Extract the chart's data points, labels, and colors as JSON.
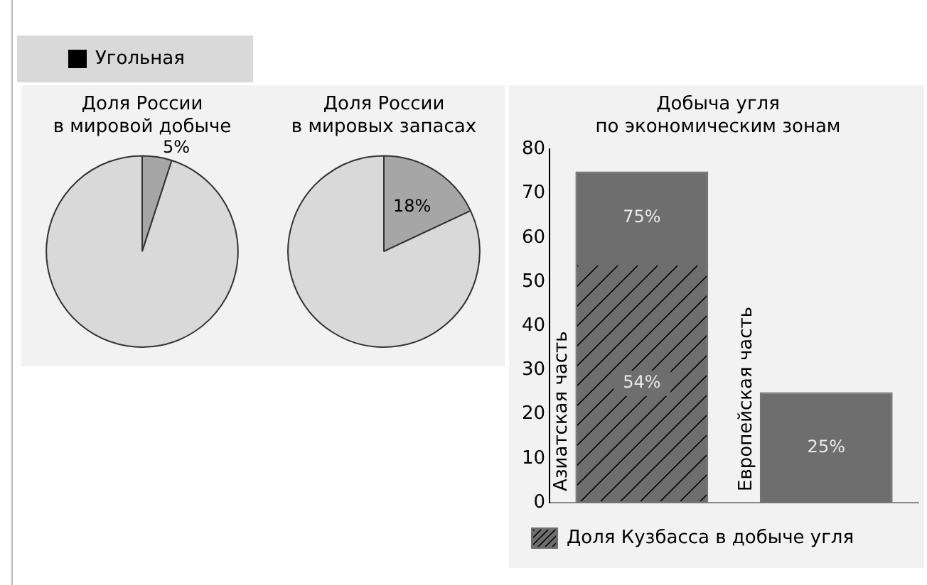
{
  "chart_data": [
    {
      "type": "other",
      "annotations": [
        "Угольная"
      ]
    },
    {
      "type": "pie",
      "title": "Доля России\nв мировой добыче",
      "categories": [
        null,
        null
      ],
      "values": [
        5,
        95
      ],
      "colors": [
        "#a6a6a6",
        "#d9d9d9"
      ],
      "value_labels": [
        "5%",
        null
      ]
    },
    {
      "type": "pie",
      "title": "Доля России\nв мировых запасах",
      "categories": [
        null,
        null
      ],
      "values": [
        18,
        82
      ],
      "colors": [
        "#a6a6a6",
        "#d9d9d9"
      ],
      "value_labels": [
        "18%",
        null
      ]
    },
    {
      "type": "bar",
      "title": "Добыча угля\nпо экономическим зонам",
      "categories": [
        "Азиатская часть",
        "Европейская часть"
      ],
      "stacked": true,
      "ylim": [
        0,
        80
      ],
      "yticks": [
        0,
        10,
        20,
        30,
        40,
        50,
        60,
        70,
        80
      ],
      "grid": false,
      "legend": "bottom",
      "series": [
        {
          "name": "Доля Кузбасса в добыче угля",
          "color": "#6e6e6e",
          "values": [
            54,
            null
          ],
          "value_labels": [
            "54%",
            null
          ]
        },
        {
          "color": "#6e6e6e",
          "values": [
            21,
            25
          ]
        }
      ],
      "totals": [
        "75%",
        "25%"
      ]
    }
  ]
}
